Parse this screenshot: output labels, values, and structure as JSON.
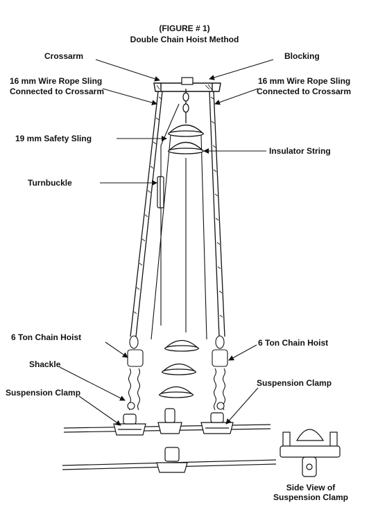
{
  "figure": {
    "number": "(FIGURE # 1)",
    "title": "Double Chain Hoist Method"
  },
  "labels": {
    "crossarm": "Crossarm",
    "blocking": "Blocking",
    "sling_left_1": "16 mm Wire Rope Sling",
    "sling_left_2": "Connected to Crossarm",
    "sling_right_1": "16 mm Wire Rope Sling",
    "sling_right_2": "Connected to Crossarm",
    "safety_sling": "19 mm Safety Sling",
    "insulator_string": "Insulator String",
    "turnbuckle": "Turnbuckle",
    "chain_hoist_left": "6 Ton Chain Hoist",
    "chain_hoist_right": "6 Ton Chain Hoist",
    "shackle": "Shackle",
    "suspension_clamp_left": "Suspension Clamp",
    "suspension_clamp_right": "Suspension Clamp",
    "side_view_1": "Side View of",
    "side_view_2": "Suspension Clamp"
  }
}
